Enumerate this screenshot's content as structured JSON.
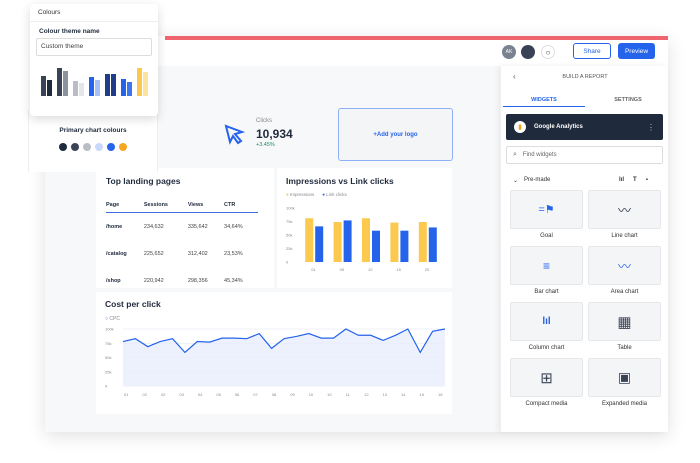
{
  "colours_panel": {
    "title": "Colours",
    "theme_label": "Colour theme name",
    "theme_value": "Custom theme",
    "primary_label": "Primary chart colours",
    "swatches": [
      "#1f2a3c",
      "#3a4356",
      "#b9bec6",
      "#c9d8fb",
      "#2563eb",
      "#f5a623"
    ]
  },
  "header": {
    "avatar_initials": "AK",
    "share": "Share",
    "preview": "Preview",
    "accent": "#f0646e",
    "primary": "#2563eb"
  },
  "kpi": {
    "label": "Clicks",
    "value": "10,934",
    "change": "+3.45%"
  },
  "logo_placeholder": "+Add your logo",
  "landing": {
    "title": "Top landing pages",
    "columns": [
      "Page",
      "Sessions",
      "Views",
      "CTR"
    ],
    "rows": [
      [
        "/home",
        "234,632",
        "335,642",
        "34,64%"
      ],
      [
        "/catalog",
        "225,652",
        "312,402",
        "23,53%"
      ],
      [
        "/shop",
        "220,942",
        "298,356",
        "45,34%"
      ]
    ]
  },
  "chart_data": [
    {
      "type": "bar",
      "title": "Impressions vs Link clicks",
      "categories": [
        "01",
        "05",
        "10",
        "15",
        "20"
      ],
      "series": [
        {
          "name": "Impressions",
          "color": "#fbc94e",
          "values": [
            81,
            74,
            81,
            73,
            74
          ]
        },
        {
          "name": "Link clicks",
          "color": "#2563eb",
          "values": [
            66,
            77,
            58,
            58,
            64
          ]
        }
      ],
      "yticks": [
        "0",
        "25k",
        "50k",
        "75k",
        "100k"
      ],
      "ylim": [
        0,
        100
      ],
      "unit": "k",
      "legend": "top-left"
    },
    {
      "type": "area",
      "title": "Cost per click",
      "series": [
        {
          "name": "CPC",
          "color": "#2563eb",
          "values": [
            78,
            83,
            69,
            78,
            83,
            59,
            78,
            77,
            84,
            84,
            83,
            92,
            66,
            83,
            87,
            92,
            84,
            84,
            100,
            89,
            89,
            80,
            89,
            100,
            59,
            96,
            100
          ]
        }
      ],
      "xticks": [
        "01",
        "02",
        "02",
        "03",
        "04",
        "05",
        "06",
        "07",
        "08",
        "09",
        "10",
        "10",
        "11",
        "12",
        "13",
        "14",
        "15",
        "16"
      ],
      "yticks": [
        "0",
        "25k",
        "50k",
        "75k",
        "100k"
      ],
      "ylim": [
        0,
        100
      ],
      "legend": "top-left"
    }
  ],
  "panel": {
    "title": "BUILD A REPORT",
    "tabs": [
      "WIDGETS",
      "SETTINGS"
    ],
    "source": "Google Analytics",
    "search_placeholder": "Find widgets",
    "section": "Pre-made",
    "widgets": [
      "Goal",
      "Line chart",
      "Bar chart",
      "Area chart",
      "Column chart",
      "Table",
      "Compact media",
      "Expanded media"
    ]
  }
}
